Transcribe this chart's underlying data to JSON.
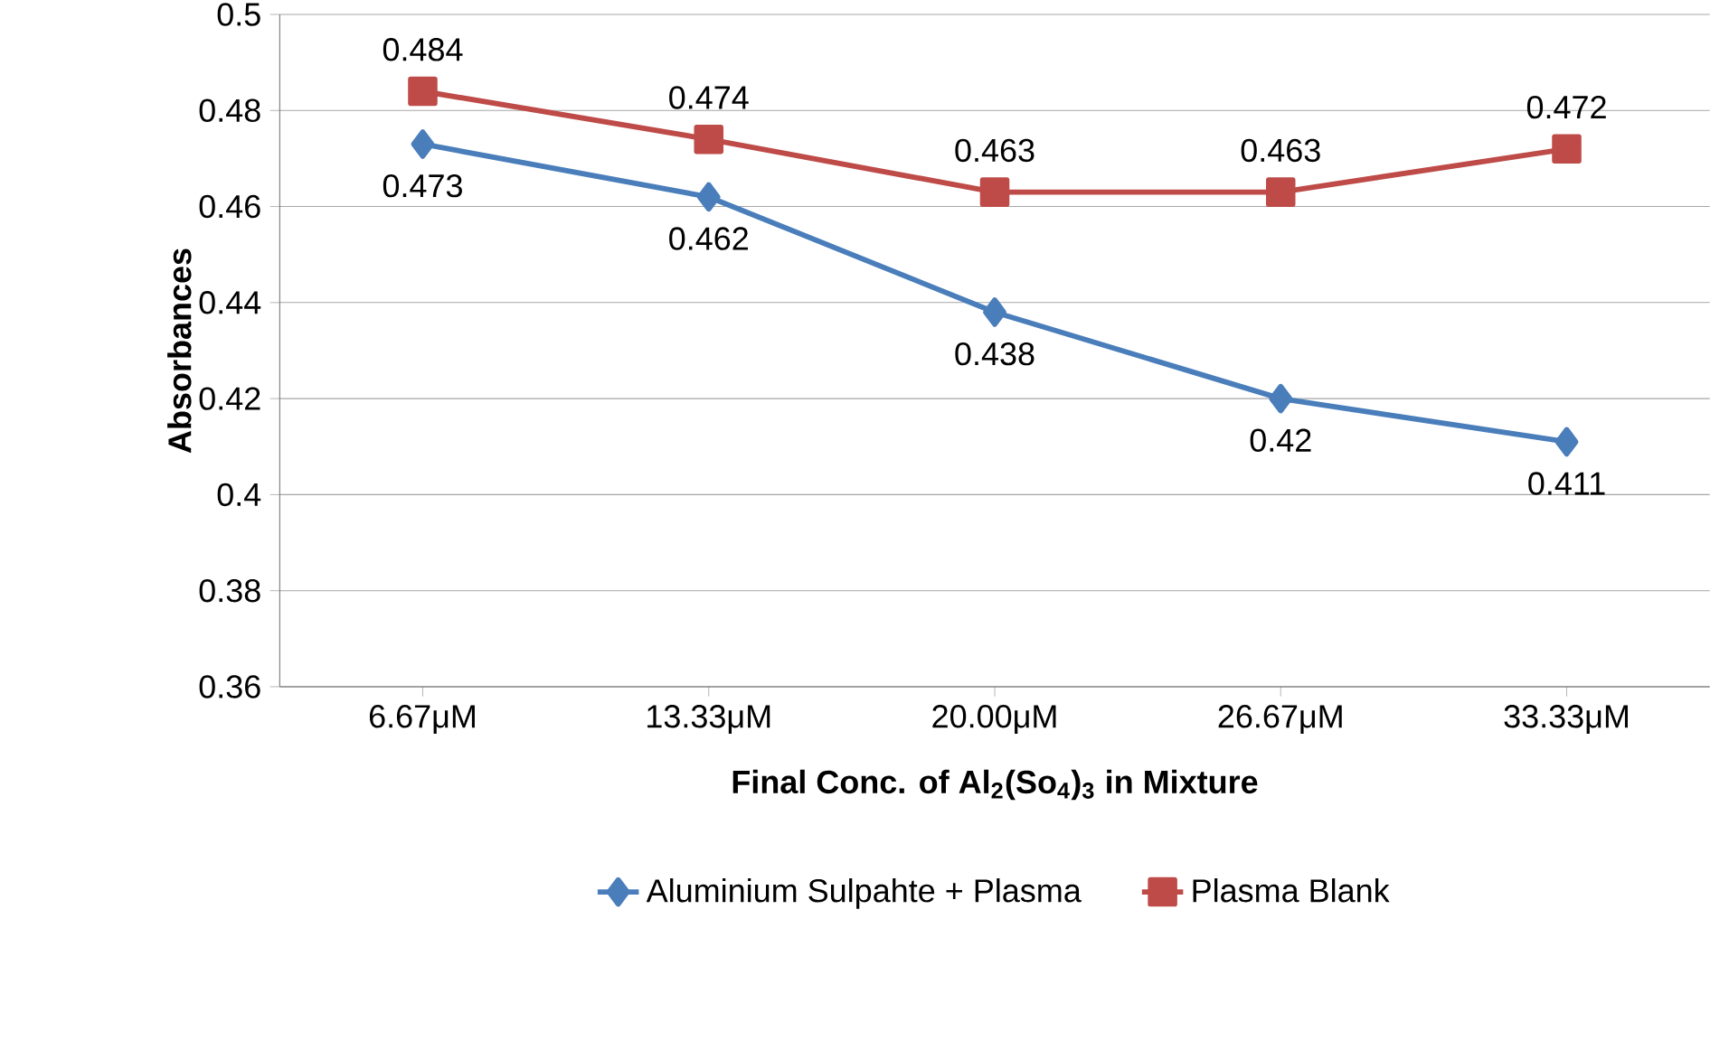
{
  "chart_data": {
    "type": "line",
    "xlabel": "Final Conc. of Al$_{2}$(So$_{4}$)$_{3}$ in Mixture",
    "ylabel": "Absorbances",
    "categories": [
      "6.67μM",
      "13.33μM",
      "20.00μM",
      "26.67μM",
      "33.33μM"
    ],
    "series": [
      {
        "name": "Aluminium Sulpahte + Plasma",
        "color": "#4a7ebb",
        "marker": "diamond",
        "values": [
          0.473,
          0.462,
          0.438,
          0.42,
          0.411
        ]
      },
      {
        "name": "Plasma Blank",
        "color": "#be4b48",
        "marker": "square",
        "values": [
          0.484,
          0.474,
          0.463,
          0.463,
          0.472
        ]
      }
    ],
    "ylim": [
      0.36,
      0.5
    ],
    "yticks": [
      0.36,
      0.38,
      0.4,
      0.42,
      0.44,
      0.46,
      0.48,
      0.5
    ],
    "grid": "y",
    "legend": "bottom",
    "data_labels": true,
    "line_style": "solid"
  }
}
